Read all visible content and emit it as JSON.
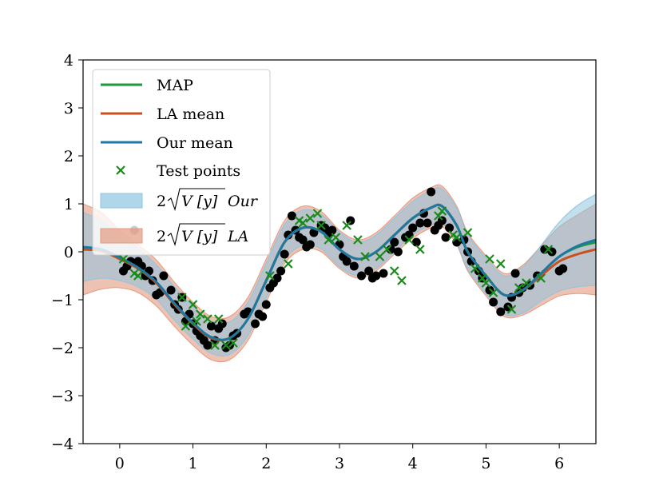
{
  "chart_data": {
    "type": "line",
    "title": "",
    "xlabel": "",
    "ylabel": "",
    "xlim": [
      -0.5,
      6.5
    ],
    "ylim": [
      -4,
      4
    ],
    "xticks": [
      0,
      1,
      2,
      3,
      4,
      5,
      6
    ],
    "yticks": [
      -4,
      -3,
      -2,
      -1,
      0,
      1,
      2,
      3,
      4
    ],
    "xtick_labels": [
      "0",
      "1",
      "2",
      "3",
      "4",
      "5",
      "6"
    ],
    "ytick_labels": [
      "−4",
      "−3",
      "−2",
      "−1",
      "0",
      "1",
      "2",
      "3",
      "4"
    ],
    "legend_position": "top-left",
    "colors": {
      "map": "#1a9a3a",
      "la_mean": "#c8501e",
      "our_mean": "#1f77a3",
      "test_points": "#1a8a1a",
      "train_points": "#000000",
      "our_band": "#8fc4df",
      "la_band": "#e39a80"
    },
    "legend": [
      {
        "key": "map",
        "label": "MAP",
        "kind": "line"
      },
      {
        "key": "la_mean",
        "label": "LA mean",
        "kind": "line"
      },
      {
        "key": "our_mean",
        "label": "Our mean",
        "kind": "line"
      },
      {
        "key": "test_points",
        "label": "Test points",
        "kind": "marker"
      },
      {
        "key": "our_band",
        "label_prefix": "2",
        "label_radicand": "V [y]",
        "label_suffix": "Our",
        "kind": "band"
      },
      {
        "key": "la_band",
        "label_prefix": "2",
        "label_radicand": "V [y]",
        "label_suffix": "LA",
        "kind": "band"
      }
    ],
    "mean_x": [
      -0.5,
      -0.25,
      0.0,
      0.25,
      0.5,
      0.75,
      1.0,
      1.25,
      1.5,
      1.75,
      2.0,
      2.25,
      2.5,
      2.75,
      3.0,
      3.25,
      3.5,
      3.75,
      4.0,
      4.25,
      4.4,
      4.6,
      4.75,
      5.0,
      5.25,
      5.5,
      5.75,
      6.0,
      6.25,
      6.5
    ],
    "series": [
      {
        "name": "MAP",
        "key": "map",
        "values": [
          0.05,
          0.02,
          -0.15,
          -0.35,
          -0.65,
          -1.1,
          -1.5,
          -1.8,
          -1.8,
          -1.4,
          -0.6,
          0.2,
          0.5,
          0.42,
          0.05,
          -0.15,
          0.0,
          0.35,
          0.7,
          0.92,
          0.95,
          0.55,
          0.0,
          -0.5,
          -0.9,
          -0.8,
          -0.45,
          -0.1,
          0.1,
          0.2
        ]
      },
      {
        "name": "LA mean",
        "key": "la_mean",
        "values": [
          0.05,
          0.02,
          -0.15,
          -0.35,
          -0.65,
          -1.1,
          -1.5,
          -1.8,
          -1.8,
          -1.4,
          -0.6,
          0.2,
          0.5,
          0.42,
          0.05,
          -0.15,
          0.0,
          0.35,
          0.7,
          0.92,
          0.95,
          0.55,
          0.0,
          -0.5,
          -0.9,
          -0.8,
          -0.5,
          -0.2,
          -0.05,
          0.05
        ]
      },
      {
        "name": "Our mean",
        "key": "our_mean",
        "values": [
          0.1,
          0.05,
          -0.12,
          -0.33,
          -0.63,
          -1.08,
          -1.48,
          -1.78,
          -1.8,
          -1.4,
          -0.6,
          0.2,
          0.5,
          0.42,
          0.05,
          -0.15,
          0.0,
          0.35,
          0.7,
          0.92,
          0.95,
          0.55,
          0.0,
          -0.5,
          -0.9,
          -0.8,
          -0.45,
          -0.1,
          0.12,
          0.25
        ]
      }
    ],
    "bands": [
      {
        "key": "la_band",
        "half_width": [
          0.95,
          0.8,
          0.6,
          0.5,
          0.48,
          0.46,
          0.45,
          0.45,
          0.45,
          0.45,
          0.45,
          0.45,
          0.45,
          0.42,
          0.4,
          0.4,
          0.4,
          0.4,
          0.42,
          0.42,
          0.42,
          0.4,
          0.4,
          0.42,
          0.45,
          0.52,
          0.62,
          0.72,
          0.82,
          0.95
        ]
      },
      {
        "key": "our_band",
        "half_width": [
          0.72,
          0.6,
          0.48,
          0.4,
          0.36,
          0.35,
          0.34,
          0.34,
          0.34,
          0.35,
          0.36,
          0.37,
          0.37,
          0.36,
          0.36,
          0.35,
          0.35,
          0.35,
          0.35,
          0.36,
          0.36,
          0.36,
          0.36,
          0.37,
          0.4,
          0.48,
          0.58,
          0.72,
          0.85,
          0.95
        ]
      }
    ],
    "train_points": {
      "x": [
        0.05,
        0.1,
        0.15,
        0.3,
        0.35,
        0.4,
        0.45,
        0.5,
        0.55,
        0.6,
        0.7,
        0.75,
        0.8,
        0.9,
        0.95,
        1.0,
        1.05,
        1.1,
        1.15,
        1.2,
        1.3,
        1.35,
        1.4,
        1.5,
        1.55,
        1.6,
        1.7,
        1.75,
        1.85,
        1.9,
        1.95,
        2.0,
        2.05,
        2.1,
        2.15,
        2.2,
        2.25,
        2.3,
        2.4,
        2.45,
        2.5,
        2.55,
        2.6,
        2.65,
        2.75,
        2.8,
        2.85,
        2.9,
        3.0,
        3.05,
        3.1,
        3.2,
        3.3,
        3.4,
        3.45,
        3.5,
        3.6,
        3.7,
        3.75,
        3.8,
        3.9,
        3.95,
        4.0,
        4.05,
        4.1,
        4.15,
        4.2,
        4.3,
        4.35,
        4.4,
        4.45,
        4.5,
        4.6,
        4.7,
        4.75,
        4.8,
        4.9,
        4.95,
        5.05,
        5.1,
        5.2,
        5.3,
        5.35,
        5.45,
        5.5,
        5.6,
        5.7,
        5.8,
        5.9,
        6.0,
        6.05,
        5.4,
        4.25,
        3.15,
        2.35,
        1.25,
        0.2,
        0.25,
        1.45,
        0.85
      ],
      "y": [
        -0.4,
        -0.3,
        -0.2,
        -0.3,
        -0.5,
        -0.4,
        -0.6,
        -0.9,
        -0.85,
        -0.5,
        -0.8,
        -1.1,
        -1.2,
        -1.45,
        -1.3,
        -1.5,
        -1.65,
        -1.75,
        -1.85,
        -1.95,
        -1.85,
        -1.6,
        -1.5,
        -1.95,
        -1.75,
        -1.7,
        -1.3,
        -1.25,
        -1.5,
        -1.3,
        -1.35,
        -1.1,
        -0.75,
        -0.65,
        -0.55,
        -0.4,
        -0.05,
        0.35,
        0.45,
        0.3,
        0.25,
        0.1,
        0.15,
        0.4,
        0.55,
        0.5,
        0.35,
        0.45,
        0.15,
        -0.1,
        -0.2,
        -0.3,
        -0.5,
        -0.4,
        -0.55,
        -0.5,
        -0.45,
        0.05,
        0.2,
        0.0,
        0.3,
        0.35,
        0.5,
        0.2,
        0.6,
        0.8,
        0.6,
        0.45,
        0.55,
        0.65,
        0.3,
        0.5,
        0.2,
        0.25,
        0.0,
        -0.2,
        -0.4,
        -0.55,
        -0.8,
        -1.05,
        -1.25,
        -1.15,
        -0.95,
        -0.85,
        -0.75,
        -0.7,
        -0.5,
        0.05,
        0.0,
        -0.4,
        -0.35,
        -0.45,
        1.25,
        0.65,
        0.75,
        -1.55,
        0.45,
        -0.2,
        -2.0,
        -0.95
      ]
    },
    "test_points_data": {
      "x": [
        0.05,
        0.2,
        0.25,
        0.85,
        0.9,
        1.0,
        1.05,
        1.1,
        1.2,
        1.3,
        1.35,
        1.45,
        1.55,
        2.05,
        2.3,
        2.45,
        2.5,
        2.6,
        2.7,
        2.75,
        2.85,
        2.95,
        3.1,
        3.25,
        3.35,
        3.55,
        3.65,
        3.75,
        3.85,
        3.95,
        4.1,
        4.35,
        4.4,
        4.55,
        4.6,
        4.75,
        4.85,
        4.95,
        5.0,
        5.05,
        5.1,
        5.2,
        5.35,
        5.45,
        5.55,
        5.75,
        5.85
      ],
      "y": [
        -0.15,
        -0.45,
        -0.5,
        -0.95,
        -1.55,
        -1.1,
        -1.45,
        -1.3,
        -1.4,
        -1.95,
        -1.4,
        -1.95,
        -1.9,
        -0.5,
        -0.25,
        0.65,
        0.6,
        0.7,
        0.8,
        0.55,
        0.25,
        0.3,
        0.55,
        0.25,
        -0.1,
        -0.1,
        0.05,
        -0.4,
        -0.6,
        0.25,
        0.05,
        0.75,
        0.85,
        0.35,
        0.3,
        0.4,
        -0.35,
        -0.55,
        -0.65,
        -0.15,
        -0.85,
        -0.25,
        -1.2,
        -0.75,
        -0.65,
        -0.55,
        0.05
      ]
    }
  }
}
